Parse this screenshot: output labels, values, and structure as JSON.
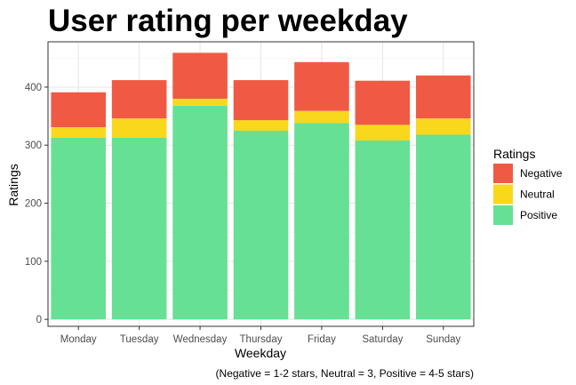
{
  "chart_data": {
    "type": "bar",
    "stacked": true,
    "title": "User rating per weekday",
    "xlabel": "Weekday",
    "ylabel": "Ratings",
    "caption": "(Negative = 1-2 stars, Neutral = 3, Positive = 4-5 stars)",
    "categories": [
      "Monday",
      "Tuesday",
      "Wednesday",
      "Thursday",
      "Friday",
      "Saturday",
      "Sunday"
    ],
    "series": [
      {
        "name": "Positive",
        "color": "#66e094",
        "values": [
          313,
          313,
          368,
          325,
          338,
          308,
          318
        ]
      },
      {
        "name": "Neutral",
        "color": "#f9d71c",
        "values": [
          18,
          33,
          12,
          18,
          21,
          27,
          28
        ]
      },
      {
        "name": "Negative",
        "color": "#f05a44",
        "values": [
          60,
          66,
          79,
          69,
          84,
          76,
          74
        ]
      }
    ],
    "ylim": [
      -12,
      478
    ],
    "yticks": [
      0,
      100,
      200,
      300,
      400
    ],
    "grid": true,
    "legend": {
      "title": "Ratings",
      "position": "right",
      "entries": [
        "Negative",
        "Neutral",
        "Positive"
      ]
    }
  }
}
